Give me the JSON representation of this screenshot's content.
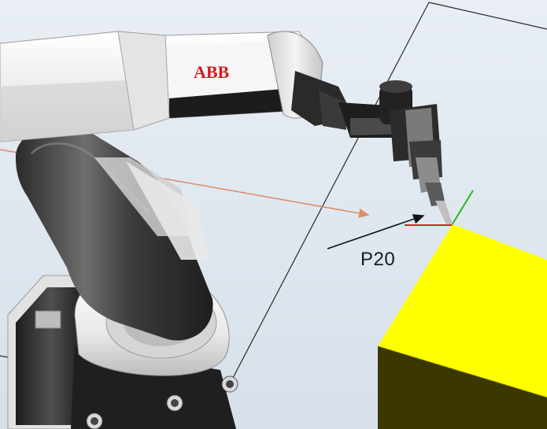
{
  "scene": {
    "robot_brand": "ABB",
    "target_label": "P20",
    "colors": {
      "background": "#dfe6ee",
      "workpiece": "#ffff00",
      "workpiece_shadow": "#3a3800",
      "robot_body": "#ececec",
      "robot_dark": "#262626",
      "brand": "#d11f1f",
      "path_line": "#d98d6a",
      "approach_arrow": "#111111",
      "frame_x_axis": "#e02020",
      "frame_y_axis": "#22bb22"
    },
    "icons": [
      "target-frame-icon",
      "approach-arrow-icon",
      "path-arrow-icon"
    ]
  }
}
